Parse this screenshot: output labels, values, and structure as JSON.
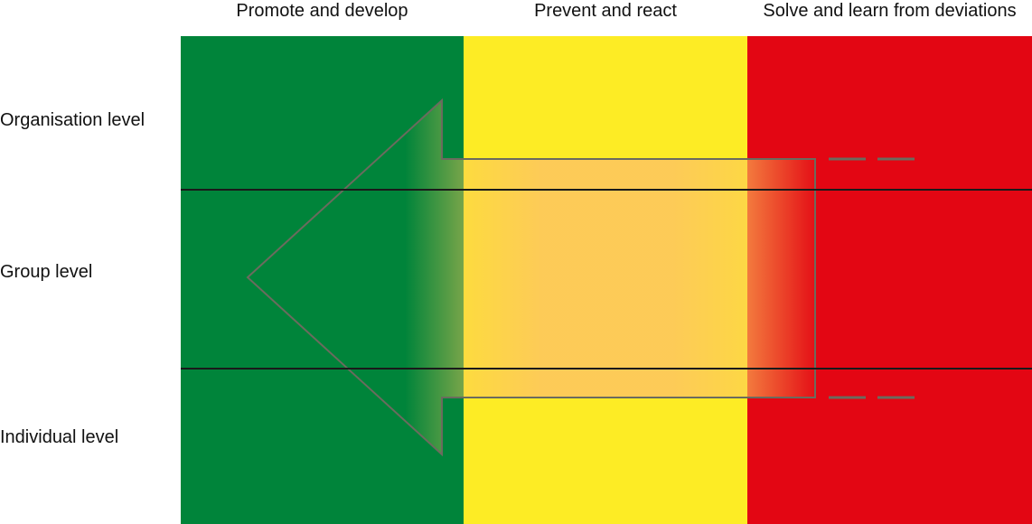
{
  "columns": [
    {
      "label": "Promote and develop",
      "color": "#00843a"
    },
    {
      "label": "Prevent and react",
      "color": "#fdec25"
    },
    {
      "label": "Solve and learn from deviations",
      "color": "#e30613"
    }
  ],
  "rows": [
    {
      "label": "Organisation level"
    },
    {
      "label": "Group level"
    },
    {
      "label": "Individual level"
    }
  ],
  "arrow": {
    "direction": "left",
    "fill_color": "#fdc95a",
    "outline_color": "#6b6b5e"
  },
  "divider_color": "#1a1a1a"
}
